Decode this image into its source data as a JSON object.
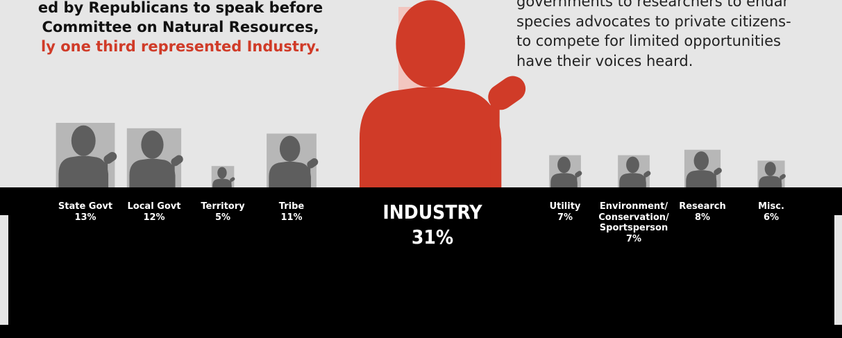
{
  "intro": {
    "line1": "ed by Republicans to speak before",
    "line2": "Committee on Natural Resources,",
    "line3": "ly one third represented Industry."
  },
  "side_text": "governments to researchers to endar\nspecies advocates to private citizens-\nto compete for limited opportunities\nhave their voices heard.",
  "colors": {
    "highlight": "#d03b28",
    "podium": "#000000",
    "silhouette": "#5e5e5e",
    "box": "#b7b7b7",
    "highlight_box": "#f2c6c0"
  },
  "chart_data": {
    "type": "bar",
    "encoding": "speaker silhouette size proportional to share",
    "unit": "%",
    "categories": [
      "State Govt",
      "Local Govt",
      "Territory",
      "Tribe",
      "INDUSTRY",
      "Utility",
      "Environment/ Conservation/ Sportsperson",
      "Research",
      "Misc."
    ],
    "values": [
      13,
      12,
      5,
      11,
      31,
      7,
      7,
      8,
      6
    ],
    "labels": [
      {
        "name": "State Govt",
        "pct": "13%"
      },
      {
        "name": "Local Govt",
        "pct": "12%"
      },
      {
        "name": "Territory",
        "pct": "5%"
      },
      {
        "name": "Tribe",
        "pct": "11%"
      },
      {
        "name": "INDUSTRY",
        "pct": "31%"
      },
      {
        "name": "Utility",
        "pct": "7%"
      },
      {
        "name": "Environment/\nConservation/\nSportsperson",
        "pct": "7%"
      },
      {
        "name": "Research",
        "pct": "8%"
      },
      {
        "name": "Misc.",
        "pct": "6%"
      }
    ],
    "highlight": "INDUSTRY"
  }
}
